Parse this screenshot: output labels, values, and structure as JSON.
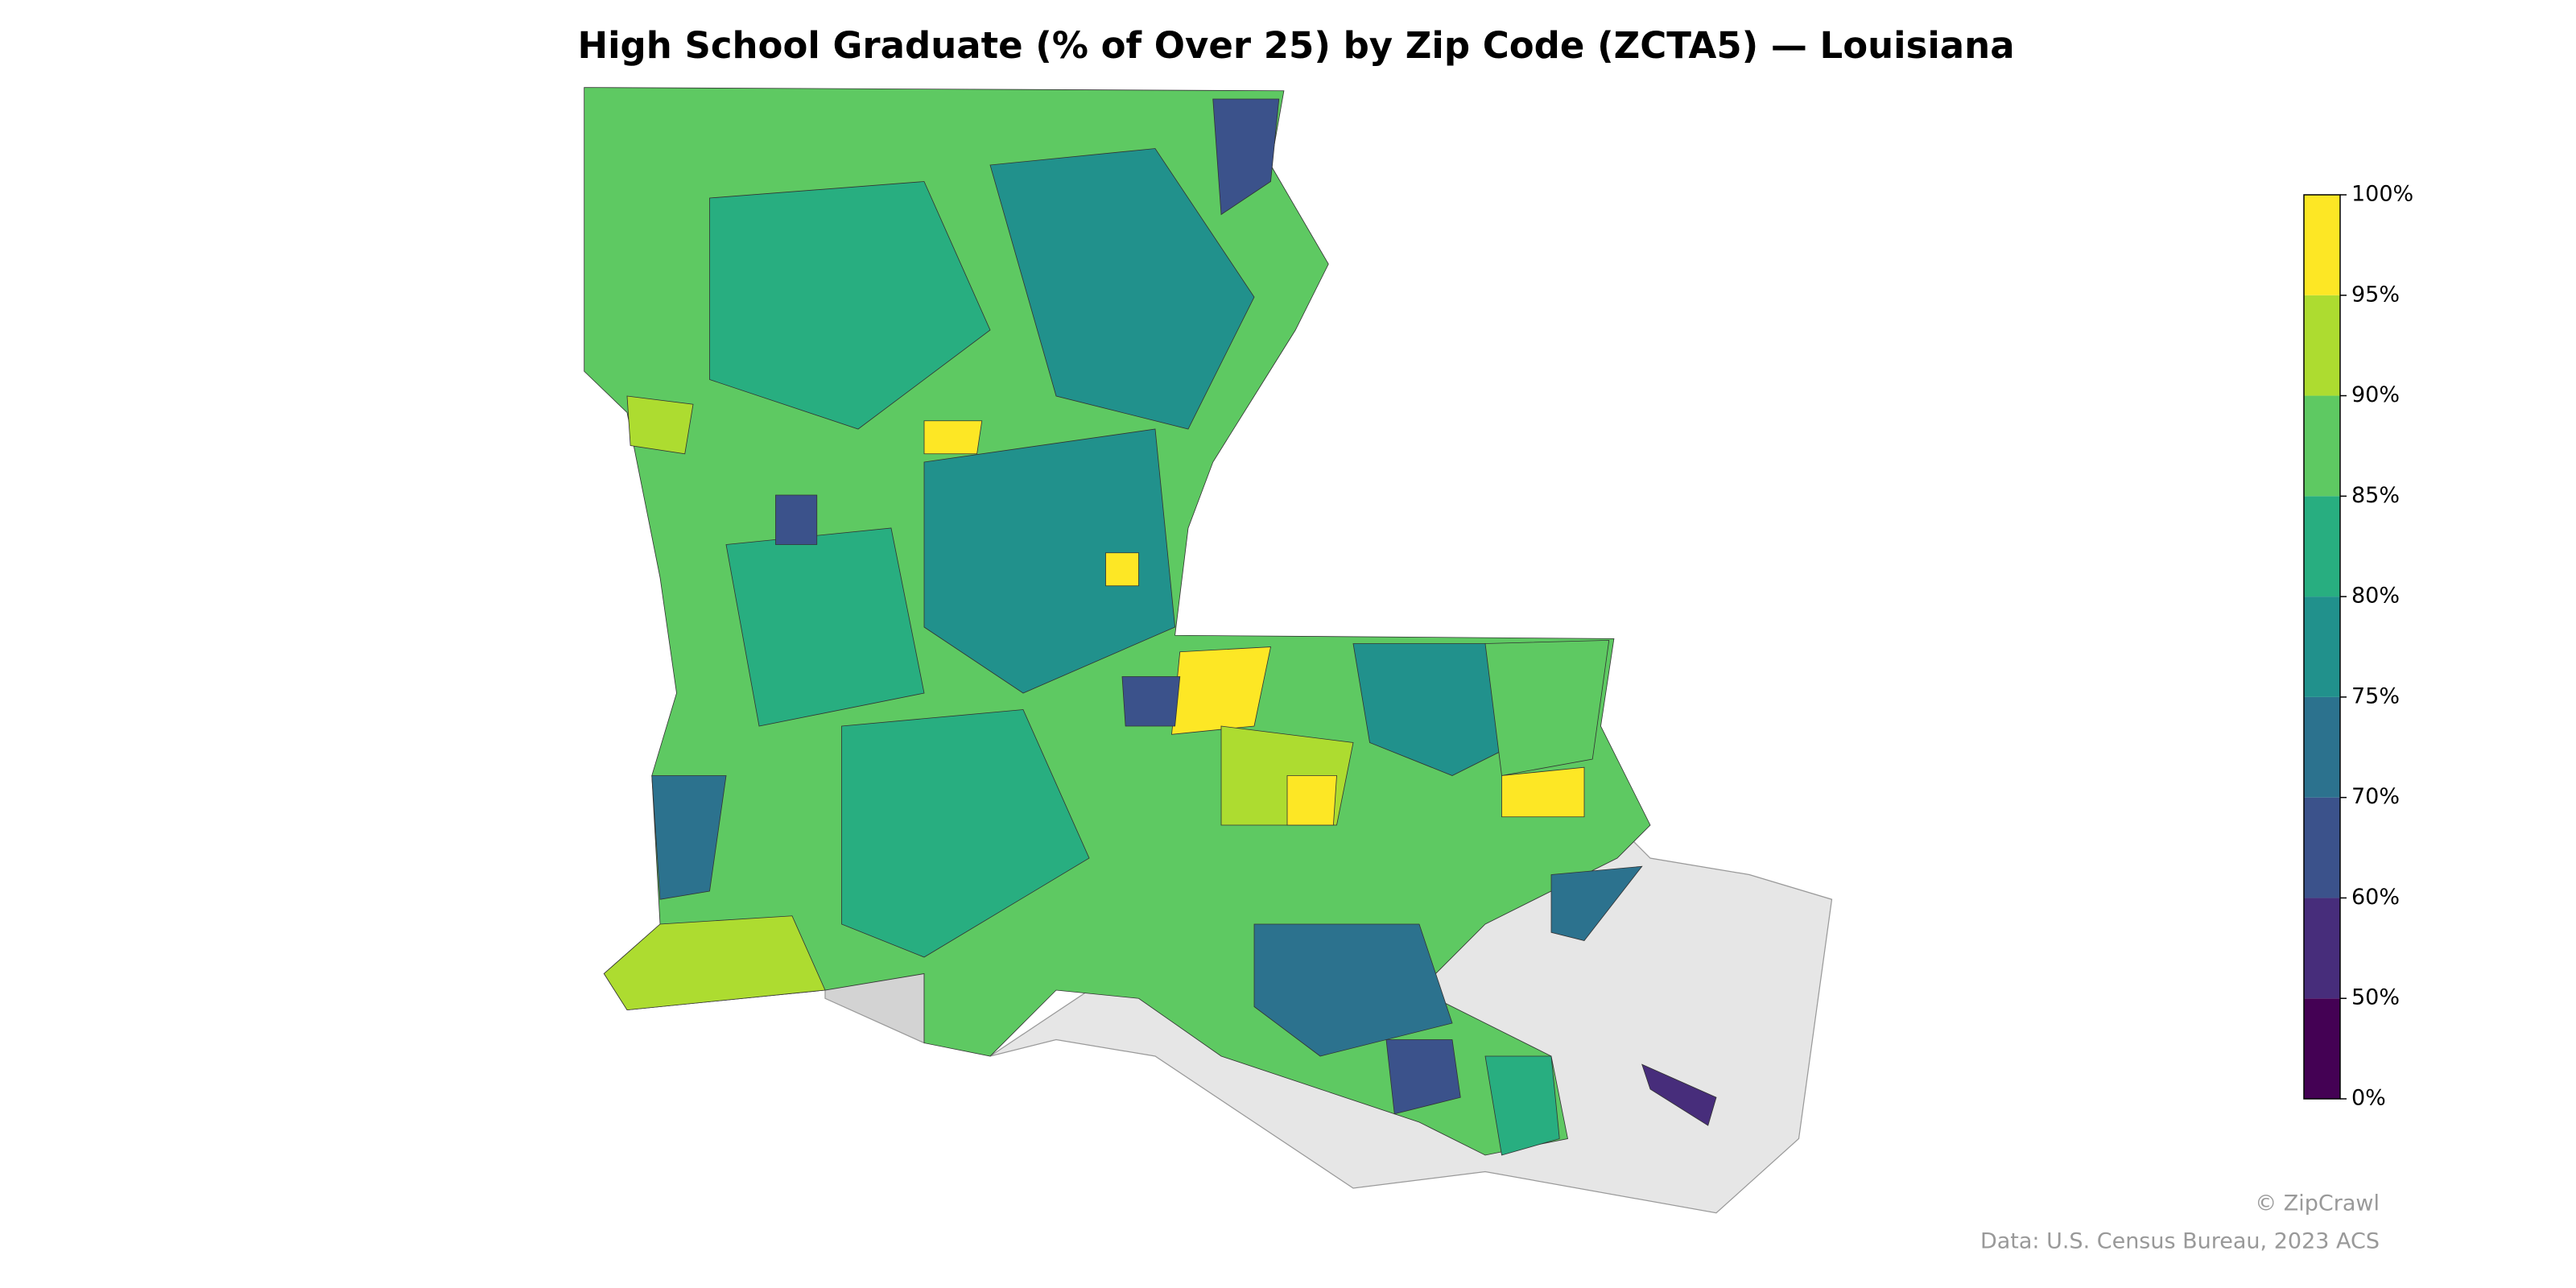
{
  "title": "High School Graduate (% of Over 25) by Zip Code (ZCTA5) — Louisiana",
  "legend": {
    "ticks": [
      {
        "value": 0,
        "label": "0%"
      },
      {
        "value": 50,
        "label": "50%"
      },
      {
        "value": 60,
        "label": "60%"
      },
      {
        "value": 70,
        "label": "70%"
      },
      {
        "value": 75,
        "label": "75%"
      },
      {
        "value": 80,
        "label": "80%"
      },
      {
        "value": 85,
        "label": "85%"
      },
      {
        "value": 90,
        "label": "90%"
      },
      {
        "value": 95,
        "label": "95%"
      },
      {
        "value": 100,
        "label": "100%"
      }
    ],
    "colors": [
      "#440154",
      "#472d7b",
      "#3b528b",
      "#2c728e",
      "#21918c",
      "#28ae80",
      "#5ec962",
      "#addc30",
      "#fde725"
    ]
  },
  "credit": "© ZipCrawl",
  "source": "Data: U.S. Census Bureau, 2023 ACS"
}
